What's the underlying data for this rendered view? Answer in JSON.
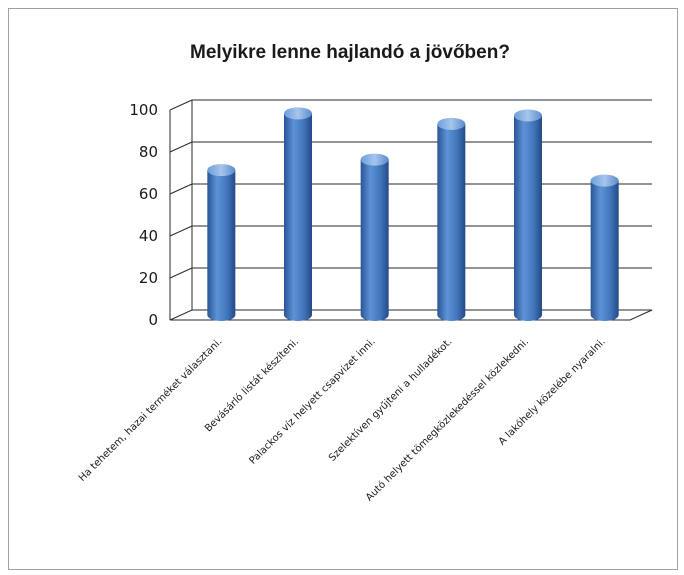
{
  "chart_data": {
    "type": "bar",
    "title": "Melyikre lenne hajlandó  a jövőben?",
    "categories": [
      "Ha tehetem, hazai terméket választani.",
      "Bevásárló listát készíteni.",
      "Palackos víz helyett csapvizet inni.",
      "Szelektíven gyűjteni a hulladékot.",
      "Autó helyett tömegközlekedéssel közlekedni.",
      "A lakóhely közelébe nyaralni."
    ],
    "values": [
      69,
      96,
      74,
      91,
      95,
      64
    ],
    "ylim": [
      0,
      100
    ],
    "yticks": [
      0,
      20,
      40,
      60,
      80,
      100
    ],
    "grid": true,
    "legend": "none",
    "colors": {
      "bar_main": "#4a7ebb",
      "bar_dark": "#2a5596",
      "bar_light": "#8fb4e3",
      "grid": "#2a2a2a"
    }
  }
}
